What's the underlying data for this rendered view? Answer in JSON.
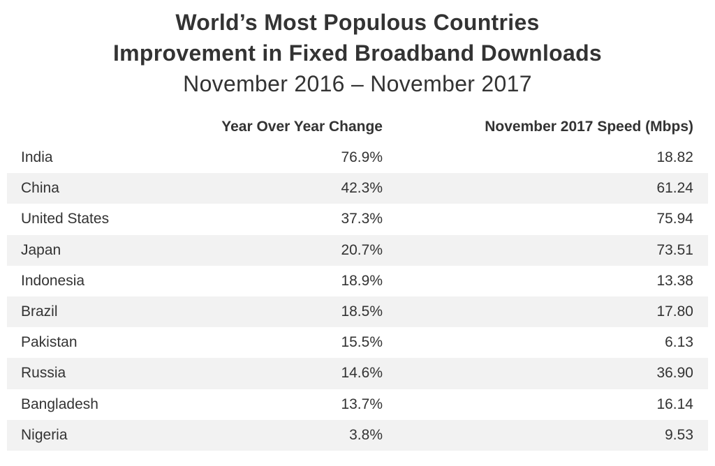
{
  "chart_data": {
    "type": "table",
    "title": "World’s Most Populous Countries",
    "title_line2": "Improvement in Fixed Broadband Downloads",
    "subtitle": "November 2016 – November 2017",
    "columns": [
      "",
      "Year Over Year Change",
      "November 2017 Speed (Mbps)"
    ],
    "rows": [
      {
        "country": "India",
        "yoy_change": "76.9%",
        "speed_mbps": "18.82"
      },
      {
        "country": "China",
        "yoy_change": "42.3%",
        "speed_mbps": "61.24"
      },
      {
        "country": "United States",
        "yoy_change": "37.3%",
        "speed_mbps": "75.94"
      },
      {
        "country": "Japan",
        "yoy_change": "20.7%",
        "speed_mbps": "73.51"
      },
      {
        "country": "Indonesia",
        "yoy_change": "18.9%",
        "speed_mbps": "13.38"
      },
      {
        "country": "Brazil",
        "yoy_change": "18.5%",
        "speed_mbps": "17.80"
      },
      {
        "country": "Pakistan",
        "yoy_change": "15.5%",
        "speed_mbps": "6.13"
      },
      {
        "country": "Russia",
        "yoy_change": "14.6%",
        "speed_mbps": "36.90"
      },
      {
        "country": "Bangladesh",
        "yoy_change": "13.7%",
        "speed_mbps": "16.14"
      },
      {
        "country": "Nigeria",
        "yoy_change": "3.8%",
        "speed_mbps": "9.53"
      }
    ]
  },
  "colors": {
    "text": "#333333",
    "row_shade": "#f2f2f2",
    "background": "#ffffff"
  }
}
